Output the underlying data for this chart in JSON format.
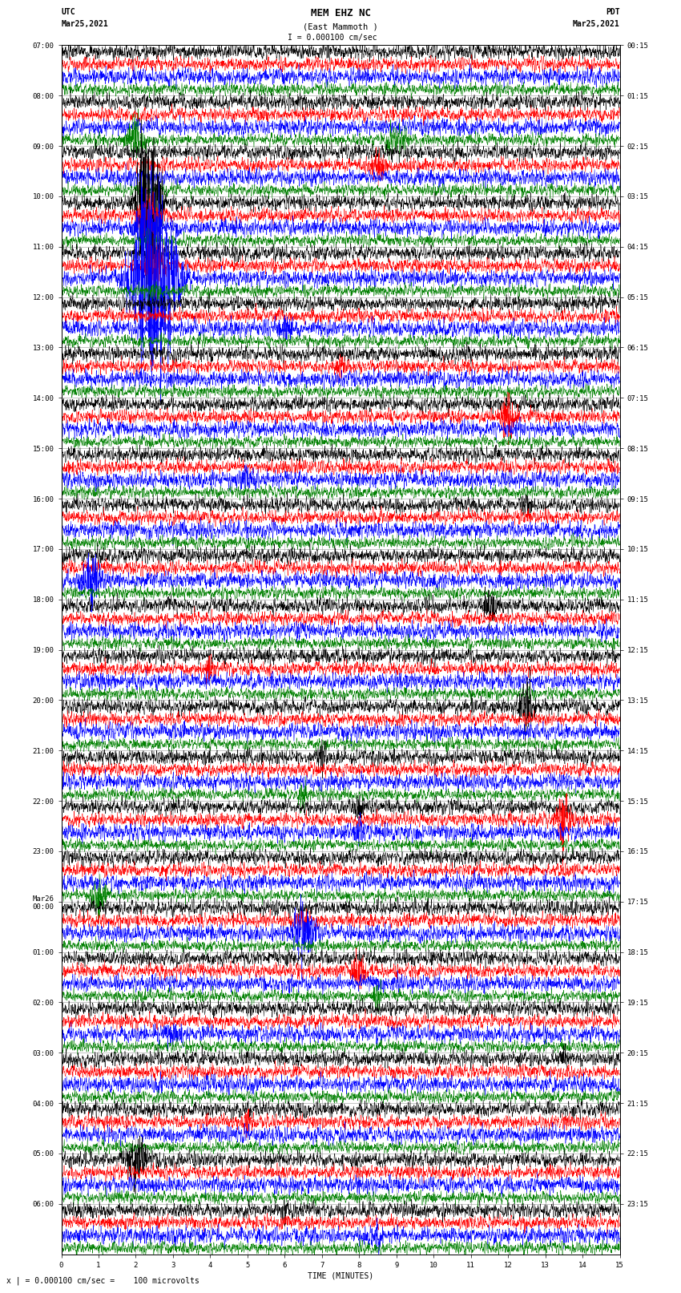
{
  "title_line1": "MEM EHZ NC",
  "title_line2": "(East Mammoth )",
  "scale_label": "I = 0.000100 cm/sec",
  "bottom_label": "x | = 0.000100 cm/sec =    100 microvolts",
  "xlabel": "TIME (MINUTES)",
  "utc_label": "UTC\nMar25,2021",
  "pdt_label": "PDT\nMar25,2021",
  "left_times": [
    "07:00",
    "08:00",
    "09:00",
    "10:00",
    "11:00",
    "12:00",
    "13:00",
    "14:00",
    "15:00",
    "16:00",
    "17:00",
    "18:00",
    "19:00",
    "20:00",
    "21:00",
    "22:00",
    "23:00",
    "Mar26\n00:00",
    "01:00",
    "02:00",
    "03:00",
    "04:00",
    "05:00",
    "06:00"
  ],
  "right_times": [
    "00:15",
    "01:15",
    "02:15",
    "03:15",
    "04:15",
    "05:15",
    "06:15",
    "07:15",
    "08:15",
    "09:15",
    "10:15",
    "11:15",
    "12:15",
    "13:15",
    "14:15",
    "15:15",
    "16:15",
    "17:15",
    "18:15",
    "19:15",
    "20:15",
    "21:15",
    "22:15",
    "23:15"
  ],
  "num_rows": 24,
  "traces_per_row": 4,
  "colors": [
    "black",
    "red",
    "blue",
    "green"
  ],
  "background_color": "white",
  "grid_color": "#999999",
  "minutes": 15,
  "xmin": 0,
  "xmax": 15,
  "title_fontsize": 9,
  "label_fontsize": 7,
  "tick_fontsize": 6.5,
  "dpi": 100,
  "fig_width": 8.5,
  "fig_height": 16.13
}
